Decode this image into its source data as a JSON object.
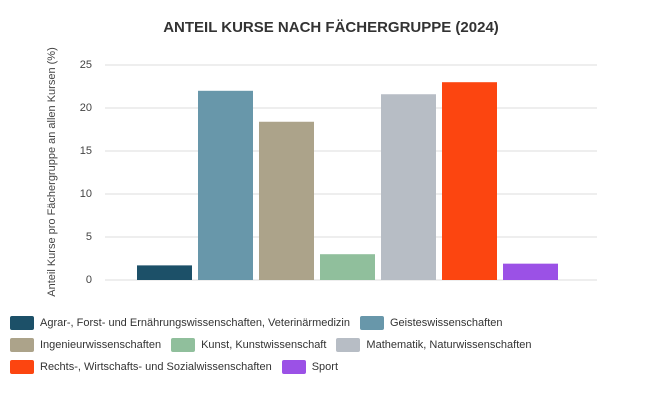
{
  "chart_data": {
    "type": "bar",
    "title": "ANTEIL KURSE NACH FÄCHERGRUPPE (2024)",
    "y_label": "Anteil Kurse pro Fächergruppe an allen Kursen (%)",
    "categories": [
      "Agrar-, Forst- und Ernährungswissenschaften, Veterinärmedizin",
      "Geisteswissenschaften",
      "Ingenieurwissenschaften",
      "Kunst, Kunstwissenschaft",
      "Mathematik, Naturwissenschaften",
      "Rechts-, Wirtschafts- und Sozialwissenschaften",
      "Sport"
    ],
    "values": [
      1.7,
      22,
      18.4,
      3.0,
      21.6,
      23,
      1.9
    ],
    "colors": [
      "#1c5068",
      "#6897aa",
      "#aca38a",
      "#90bf9c",
      "#b7bdc5",
      "#fc4510",
      "#9b51e6"
    ],
    "ylim": [
      0,
      25
    ],
    "yticks": [
      0,
      5,
      10,
      15,
      20,
      25
    ],
    "grid": true
  }
}
